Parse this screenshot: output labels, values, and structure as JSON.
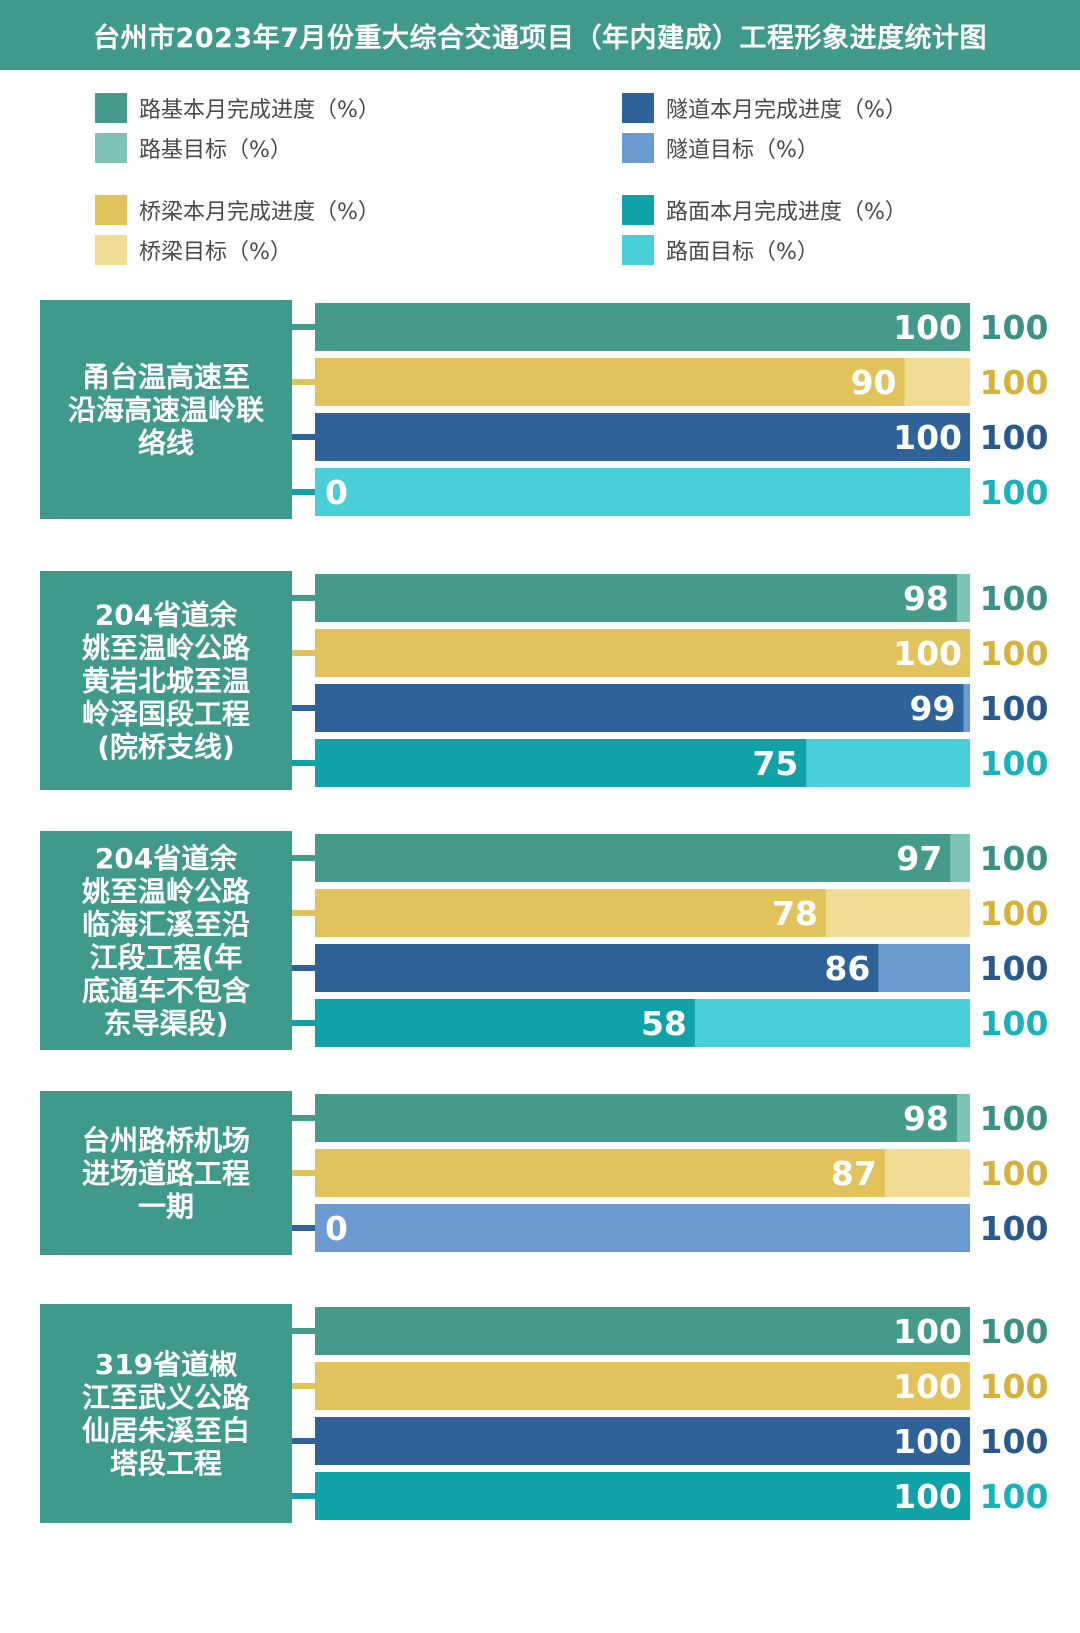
{
  "title": "台州市2023年7月份重大综合交通项目（年内建成）工程形象进度统计图",
  "colors": {
    "header": "#3f9a8b",
    "project_box": "#3f9a8b",
    "subgrade": "#449b8c",
    "subgrade_target": "#7cc2b6",
    "bridge": "#e2c35b",
    "bridge_target": "#efdb92",
    "tunnel": "#2f6298",
    "tunnel_target": "#6b9bd0",
    "pavement": "#0fa3a7",
    "pavement_target": "#48d0d8",
    "target_text_subgrade": "#3a9184",
    "target_text_bridge": "#d6b23a",
    "target_text_tunnel": "#2a5a8c",
    "target_text_pavement": "#17b3b8"
  },
  "legend": [
    {
      "label": "路基本月完成进度（%）",
      "color": "#449b8c"
    },
    {
      "label": "隧道本月完成进度（%）",
      "color": "#2f6298"
    },
    {
      "label": "路基目标（%）",
      "color": "#7cc2b6"
    },
    {
      "label": "隧道目标（%）",
      "color": "#6b9bd0"
    },
    {
      "label": "桥梁本月完成进度（%）",
      "color": "#e2c35b"
    },
    {
      "label": "路面本月完成进度（%）",
      "color": "#0fa3a7"
    },
    {
      "label": "桥梁目标（%）",
      "color": "#efdb92"
    },
    {
      "label": "路面目标（%）",
      "color": "#48d0d8"
    }
  ],
  "chart_data": {
    "type": "bar",
    "orientation": "horizontal",
    "title": "台州市2023年7月份重大综合交通项目（年内建成）工程形象进度统计图",
    "xlim": [
      0,
      100
    ],
    "grid": false,
    "legend_position": "top",
    "projects": [
      {
        "name": "甬台温高速至沿海高速温岭联络线",
        "bars": [
          {
            "series": "路基",
            "value": 100,
            "value_color": "#449b8c",
            "target": 100,
            "target_color": "#7cc2b6",
            "target_text_color": "#3a9184"
          },
          {
            "series": "桥梁",
            "value": 90,
            "value_color": "#e2c35b",
            "target": 100,
            "target_color": "#efdb92",
            "target_text_color": "#d6b23a"
          },
          {
            "series": "隧道",
            "value": 100,
            "value_color": "#2f6298",
            "target": 100,
            "target_color": "#6b9bd0",
            "target_text_color": "#2a5a8c"
          },
          {
            "series": "路面",
            "value": 0,
            "value_color": "#0fa3a7",
            "target": 100,
            "target_color": "#48d0d8",
            "target_text_color": "#17b3b8"
          }
        ]
      },
      {
        "name": "204省道余姚至温岭公路黄岩北城至温岭泽国段工程(院桥支线)",
        "bars": [
          {
            "series": "路基",
            "value": 98,
            "value_color": "#449b8c",
            "target": 100,
            "target_color": "#7cc2b6",
            "target_text_color": "#3a9184"
          },
          {
            "series": "桥梁",
            "value": 100,
            "value_color": "#e2c35b",
            "target": 100,
            "target_color": "#efdb92",
            "target_text_color": "#d6b23a"
          },
          {
            "series": "隧道",
            "value": 99,
            "value_color": "#2f6298",
            "target": 100,
            "target_color": "#6b9bd0",
            "target_text_color": "#2a5a8c"
          },
          {
            "series": "路面",
            "value": 75,
            "value_color": "#0fa3a7",
            "target": 100,
            "target_color": "#48d0d8",
            "target_text_color": "#17b3b8"
          }
        ]
      },
      {
        "name": "204省道余姚至温岭公路临海汇溪至沿江段工程(年底通车不包含东导渠段)",
        "bars": [
          {
            "series": "路基",
            "value": 97,
            "value_color": "#449b8c",
            "target": 100,
            "target_color": "#7cc2b6",
            "target_text_color": "#3a9184"
          },
          {
            "series": "桥梁",
            "value": 78,
            "value_color": "#e2c35b",
            "target": 100,
            "target_color": "#efdb92",
            "target_text_color": "#d6b23a"
          },
          {
            "series": "隧道",
            "value": 86,
            "value_color": "#2f6298",
            "target": 100,
            "target_color": "#6b9bd0",
            "target_text_color": "#2a5a8c"
          },
          {
            "series": "路面",
            "value": 58,
            "value_color": "#0fa3a7",
            "target": 100,
            "target_color": "#48d0d8",
            "target_text_color": "#17b3b8"
          }
        ]
      },
      {
        "name": "台州路桥机场进场道路工程一期",
        "bars": [
          {
            "series": "路基",
            "value": 98,
            "value_color": "#449b8c",
            "target": 100,
            "target_color": "#7cc2b6",
            "target_text_color": "#3a9184"
          },
          {
            "series": "桥梁",
            "value": 87,
            "value_color": "#e2c35b",
            "target": 100,
            "target_color": "#efdb92",
            "target_text_color": "#d6b23a"
          },
          {
            "series": "隧道",
            "value": 0,
            "value_color": "#2f6298",
            "target": 100,
            "target_color": "#6b9bd0",
            "target_text_color": "#2a5a8c"
          }
        ]
      },
      {
        "name": "319省道椒江至武义公路仙居朱溪至白塔段工程",
        "bars": [
          {
            "series": "路基",
            "value": 100,
            "value_color": "#449b8c",
            "target": 100,
            "target_color": "#7cc2b6",
            "target_text_color": "#3a9184"
          },
          {
            "series": "桥梁",
            "value": 100,
            "value_color": "#e2c35b",
            "target": 100,
            "target_color": "#efdb92",
            "target_text_color": "#d6b23a"
          },
          {
            "series": "隧道",
            "value": 100,
            "value_color": "#2f6298",
            "target": 100,
            "target_color": "#6b9bd0",
            "target_text_color": "#2a5a8c"
          },
          {
            "series": "路面",
            "value": 100,
            "value_color": "#0fa3a7",
            "target": 100,
            "target_color": "#48d0d8",
            "target_text_color": "#17b3b8"
          }
        ]
      }
    ]
  }
}
